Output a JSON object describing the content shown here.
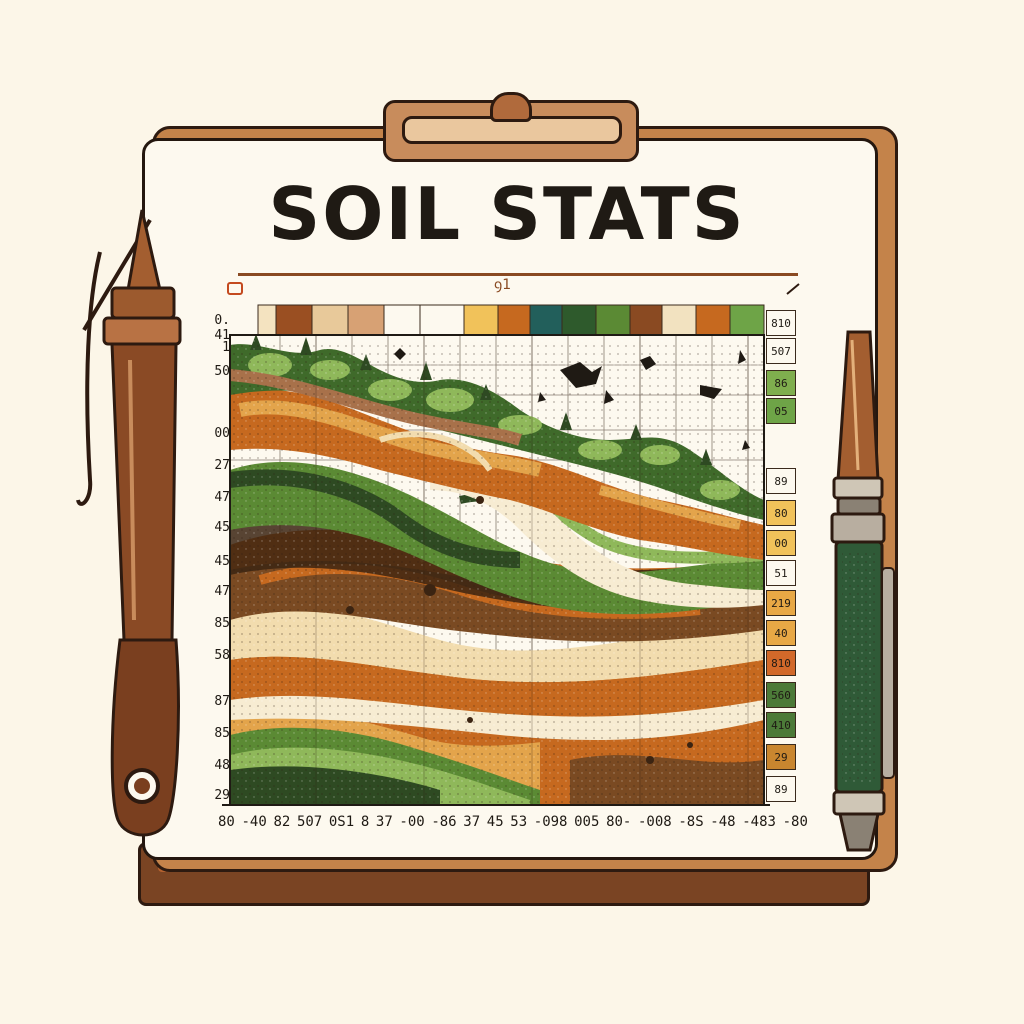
{
  "title": "SOIL STATS",
  "rule_mark": "ꝯ1",
  "header_label": "0. 41",
  "y_labels": [
    "0. 41",
    "1",
    "50",
    "00",
    "27",
    "47",
    "45",
    "45",
    "47",
    "85",
    "58",
    "87",
    "85",
    "48",
    "29"
  ],
  "x_labels": [
    "80",
    "-40",
    "82",
    "507",
    "0S1",
    "8",
    "37",
    "-00",
    "-86",
    "37",
    "45",
    "53",
    "-098",
    "005",
    "80-",
    "-008",
    "-8S",
    "-48",
    "-483",
    "-80"
  ],
  "right_labels": [
    {
      "text": "810",
      "color": "#fdf9ef"
    },
    {
      "text": "507",
      "color": "#fdf9ef"
    },
    {
      "text": "86",
      "color": "#7fae4e"
    },
    {
      "text": "05",
      "color": "#6ea447"
    },
    {
      "text": "89",
      "color": "#fdf9ef"
    },
    {
      "text": "80",
      "color": "#f1c25a"
    },
    {
      "text": "00",
      "color": "#f1c25a"
    },
    {
      "text": "51",
      "color": "#fdf9ef"
    },
    {
      "text": "219",
      "color": "#e8a845"
    },
    {
      "text": "40",
      "color": "#e8a845"
    },
    {
      "text": "810",
      "color": "#d2692a"
    },
    {
      "text": "560",
      "color": "#4c7a38"
    },
    {
      "text": "410",
      "color": "#4c7a38"
    },
    {
      "text": "29",
      "color": "#c9862f"
    },
    {
      "text": "89",
      "color": "#fdf9ef"
    }
  ],
  "colors": {
    "soil_dark": "#3b2412",
    "soil_brown": "#7a4a22",
    "soil_orange": "#c6691f",
    "soil_tan": "#e3a44b",
    "sand": "#f2dcae",
    "cream": "#f7ecd2",
    "moss_dark": "#2e4a22",
    "moss": "#5b8a34",
    "moss_light": "#8fb85a",
    "pen_green": "#2f5a37",
    "pen_brown": "#8a4a25"
  },
  "icons": [
    "left-pen-icon",
    "right-pen-icon",
    "clipboard-clip-icon",
    "soil-layers-illustration"
  ]
}
